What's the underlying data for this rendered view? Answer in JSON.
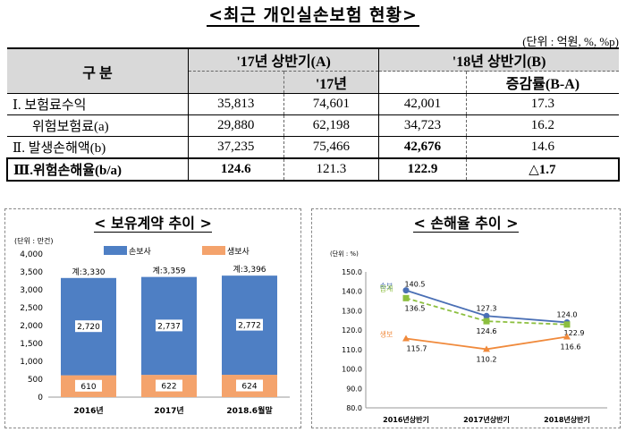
{
  "title": "<최근 개인실손보험 현황>",
  "unit_note": "(단위 : 억원, %, %p)",
  "table": {
    "header_gubun": "구 분",
    "header_17": "'17년 상반기(A)",
    "header_17_sub": "'17년",
    "header_18": "'18년 상반기(B)",
    "header_18_sub": "증감률(B-A)",
    "rows": [
      {
        "label": "Ⅰ. 보험료수익",
        "a": "35,813",
        "b": "74,601",
        "c": "42,001",
        "d": "17.3"
      },
      {
        "label": "위험보험료(a)",
        "a": "29,880",
        "b": "62,198",
        "c": "34,723",
        "d": "16.2"
      },
      {
        "label": "Ⅱ. 발생손해액(b)",
        "a": "37,235",
        "b": "75,466",
        "c": "42,676",
        "d": "14.6"
      },
      {
        "label": "Ⅲ.위험손해율(b/a)",
        "a": "124.6",
        "b": "121.3",
        "c": "122.9",
        "d": "△1.7"
      }
    ]
  },
  "chart_data": [
    {
      "type": "bar",
      "title": "< 보유계약 추이 >",
      "unit_label": "(단위 : 만건)",
      "categories": [
        "2016년",
        "2017년",
        "2018.6월말"
      ],
      "series": [
        {
          "name": "생보사",
          "values": [
            610,
            622,
            624
          ],
          "color": "#f4a36c"
        },
        {
          "name": "손보사",
          "values": [
            2720,
            2737,
            2772
          ],
          "color": "#4e7fc4"
        }
      ],
      "totals": [
        "계:3,330",
        "계:3,359",
        "계:3,396"
      ],
      "ylim": [
        0,
        4000
      ],
      "yticks": [
        "0",
        "500",
        "1,000",
        "1,500",
        "2,000",
        "2,500",
        "3,000",
        "3,500",
        "4,000"
      ],
      "stacked": true
    },
    {
      "type": "line",
      "title": "< 손해율 추이 >",
      "unit_label": "(단위 : %)",
      "categories": [
        "2016년상반기",
        "2017년상반기",
        "2018년상반기"
      ],
      "series": [
        {
          "name": "손보",
          "values": [
            140.5,
            127.3,
            124.0
          ],
          "color": "#4a6fb5",
          "dash": false
        },
        {
          "name": "합계",
          "values": [
            136.5,
            124.6,
            122.9
          ],
          "color": "#8cbf3f",
          "dash": true
        },
        {
          "name": "생보",
          "values": [
            115.7,
            110.2,
            116.6
          ],
          "color": "#f08a3c",
          "dash": false
        }
      ],
      "ylim": [
        80,
        150
      ],
      "yticks": [
        "80.0",
        "90.0",
        "100.0",
        "110.0",
        "120.0",
        "130.0",
        "140.0",
        "150.0"
      ]
    }
  ]
}
